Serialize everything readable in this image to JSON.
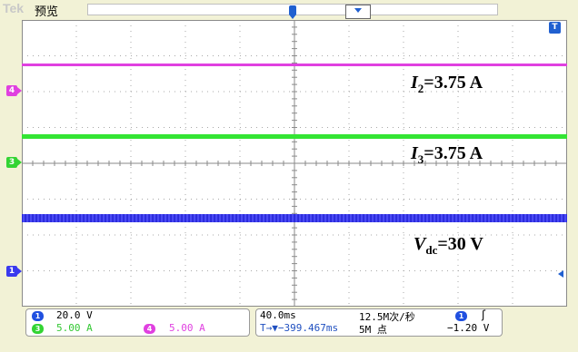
{
  "header": {
    "brand": "Tek",
    "mode": "预览"
  },
  "plot": {
    "channel_markers": [
      "4",
      "3",
      "1"
    ],
    "trigger_marker": "T"
  },
  "annotations": {
    "i2": {
      "symbol": "I",
      "sub": "2",
      "value": "=3.75 A"
    },
    "i3": {
      "symbol": "I",
      "sub": "3",
      "value": "=3.75 A"
    },
    "vdc": {
      "symbol": "V",
      "sub": "dc",
      "value": "=30 V"
    }
  },
  "readout": {
    "ch1": {
      "badge": "1",
      "scale": "20.0 V"
    },
    "ch3": {
      "badge": "3",
      "scale": "5.00 A"
    },
    "ch4": {
      "badge": "4",
      "scale": "5.00 A"
    },
    "timebase": "40.0ms",
    "sample_rate": "12.5M次/秒",
    "delay": "T→▼−399.467ms",
    "record_length": "5M 点",
    "trigger": {
      "source": "1",
      "slope": "ʃ",
      "level": "−1.20 V"
    }
  },
  "colors": {
    "ch1": "#3a3aee",
    "ch3": "#33e533",
    "ch4": "#e040e0",
    "accent": "#2060d0"
  }
}
